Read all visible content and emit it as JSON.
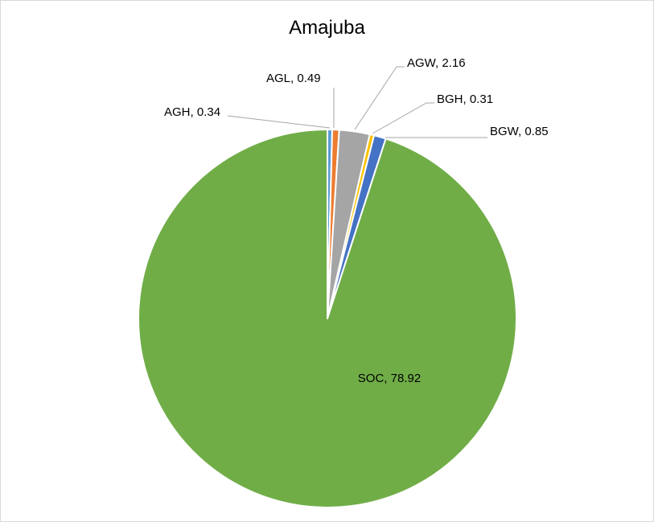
{
  "chart_data": {
    "type": "pie",
    "title": "Amajuba",
    "slices": [
      {
        "name": "AGH",
        "value": 0.34,
        "label": "AGH, 0.34",
        "color": "#5b9bd5"
      },
      {
        "name": "AGL",
        "value": 0.49,
        "label": "AGL, 0.49",
        "color": "#ed7d31"
      },
      {
        "name": "AGW",
        "value": 2.16,
        "label": "AGW, 2.16",
        "color": "#a5a5a5"
      },
      {
        "name": "BGH",
        "value": 0.31,
        "label": "BGH, 0.31",
        "color": "#ffc000"
      },
      {
        "name": "BGW",
        "value": 0.85,
        "label": "BGW, 0.85",
        "color": "#4472c4"
      },
      {
        "name": "SOC",
        "value": 78.92,
        "label": "SOC, 78.92",
        "color": "#70ad47"
      }
    ],
    "start_angle_deg": 0,
    "direction": "clockwise",
    "legend": "none"
  }
}
